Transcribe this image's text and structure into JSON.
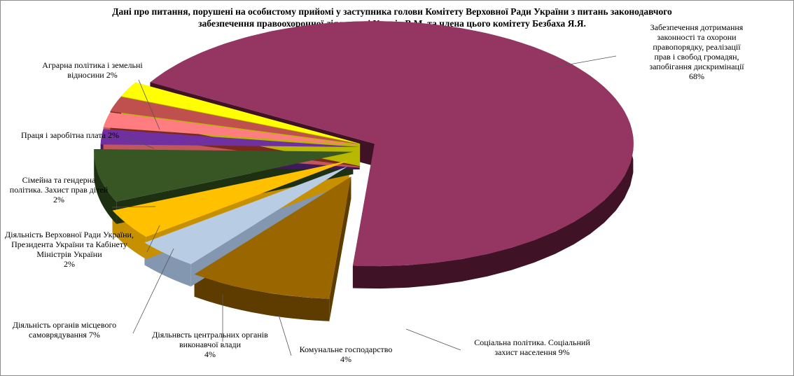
{
  "chart_data": {
    "type": "pie",
    "style": "3d-exploded",
    "title_lines": [
      "Дані про питання, порушені на особистому прийомі у заступника голови Комітету Верховної Ради України з питань законодавчого",
      "забезпечення правоохоронної діяльності Купрія В.М. та члена цього комітету Безбаха Я.Я."
    ],
    "legend": "none",
    "slices": [
      {
        "label_lines": [
          "Забезпечення дотримання",
          "законності та охорони",
          "правопорядку, реалізації",
          "прав і свобод громадян,",
          "запобігання дискримінації",
          "68%"
        ],
        "value": 68,
        "color": "#953562",
        "side_color": "#3f1226"
      },
      {
        "label_lines": [
          "Соціальна політика.  Соціальний",
          "захист  населення 9%"
        ],
        "value": 9,
        "color": "#996600",
        "side_color": "#5e3c00"
      },
      {
        "label_lines": [
          "Комунальне господарство",
          "4%"
        ],
        "value": 4,
        "color": "#b8cce4",
        "side_color": "#8497b0"
      },
      {
        "label_lines": [
          "Діяльнвсть  центральних  органів",
          "виконавчої влади",
          "4%"
        ],
        "value": 4,
        "color": "#ffc000",
        "side_color": "#c79000"
      },
      {
        "label_lines": [
          "Діяльність  органів місцевого",
          "самоврядування 7%"
        ],
        "value": 7,
        "color": "#375623",
        "side_color": "#1e3012"
      },
      {
        "label_lines": [
          "Діяльність  Верховної Ради України,",
          "Президента  України та Кабінету",
          "Міністрів  України",
          "2%"
        ],
        "value": 2,
        "color": "#7030a0",
        "side_color": "#3e1a5a"
      },
      {
        "label_lines": [
          "Сімейна та  гендерна",
          "політика.  Захист  прав дітей",
          "2%"
        ],
        "value": 2,
        "color": "#ff7c80",
        "side_color": "#c2565a"
      },
      {
        "label_lines": [
          "Праця і заробітна плата 2%"
        ],
        "value": 2,
        "color": "#c0504d",
        "side_color": "#7a2a1a"
      },
      {
        "label_lines": [
          "Аграрна політика  і земельні",
          "відносини 2%"
        ],
        "value": 2,
        "color": "#ffff00",
        "side_color": "#b8b800"
      }
    ]
  }
}
